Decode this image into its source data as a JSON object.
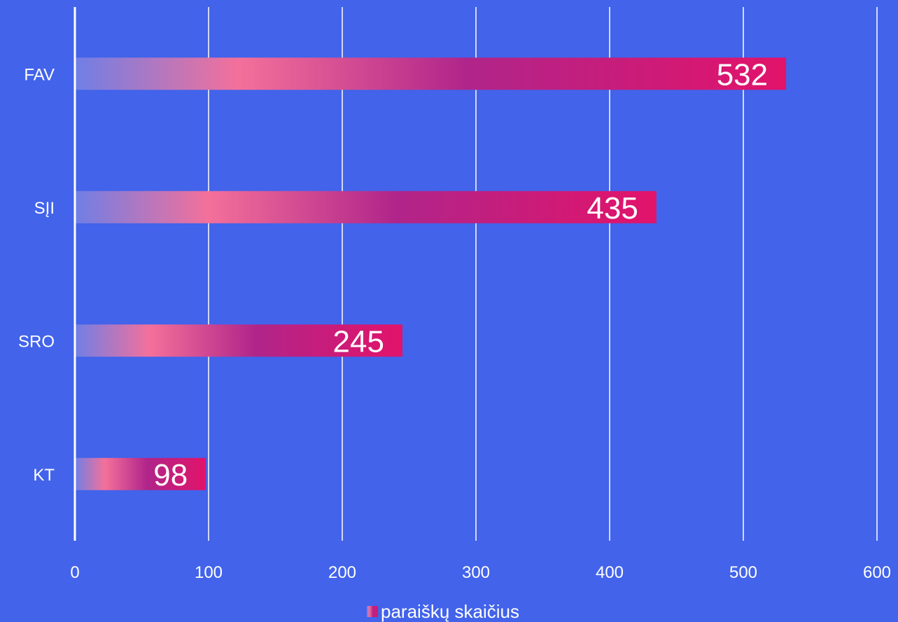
{
  "chart_data": {
    "type": "bar",
    "orientation": "horizontal",
    "categories": [
      "FAV",
      "SĮI",
      "SRO",
      "KT"
    ],
    "series": [
      {
        "name": "paraiškų skaičius",
        "values": [
          532,
          435,
          245,
          98
        ]
      }
    ],
    "xlim": [
      0,
      600
    ],
    "x_ticks": [
      "0",
      "100",
      "200",
      "300",
      "400",
      "500",
      "600"
    ],
    "data_labels": [
      "532",
      "435",
      "245",
      "98"
    ],
    "grid": true,
    "legend_position": "bottom",
    "colors": {
      "background": "#4263ea",
      "grid": "#ffffff",
      "bar_start": "#6f7fe6",
      "bar_mid": "#f4709a",
      "bar_deep": "#b0258a",
      "bar_end": "#e2136a",
      "text": "#ffffff"
    }
  }
}
